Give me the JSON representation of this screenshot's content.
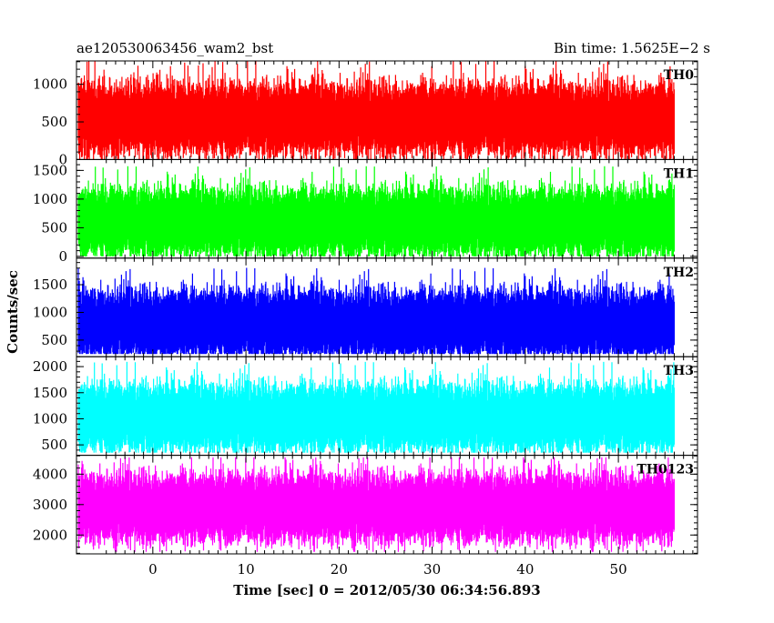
{
  "header": {
    "left_title": "ae120530063456_wam2_bst",
    "right_title": "Bin time: 1.5625E−2 s"
  },
  "axes": {
    "xlabel": "Time [sec] 0 = 2012/05/30 06:34:56.893",
    "ylabel": "Counts/sec"
  },
  "chart_data": {
    "type": "line",
    "title": "ae120530063456_wam2_bst",
    "subtitle": "Bin time: 1.5625E−2 s",
    "xlabel": "Time [sec] 0 = 2012/05/30 06:34:56.893",
    "ylabel": "Counts/sec",
    "xlim": [
      -8.2,
      58.5
    ],
    "x_range_data": [
      -8.0,
      56.0
    ],
    "x_ticks": [
      0,
      10,
      20,
      30,
      40,
      50
    ],
    "x_tick_labels": [
      "0",
      "10",
      "20",
      "30",
      "40",
      "50"
    ],
    "grid": false,
    "series": [
      {
        "name": "TH0",
        "color": "#ff0000",
        "ylim": [
          0,
          1310
        ],
        "y_ticks": [
          0,
          500,
          1000
        ],
        "y_tick_labels": [
          "0",
          "500",
          "1000"
        ],
        "mean": 560,
        "min": 0,
        "max": 1310
      },
      {
        "name": "TH1",
        "color": "#00ff00",
        "ylim": [
          -30,
          1690
        ],
        "y_ticks": [
          0,
          500,
          1000,
          1500
        ],
        "y_tick_labels": [
          "0",
          "500",
          "1000",
          "1500"
        ],
        "mean": 620,
        "min": 0,
        "max": 1650
      },
      {
        "name": "TH2",
        "color": "#0000ff",
        "ylim": [
          200,
          1980
        ],
        "y_ticks": [
          500,
          1000,
          1500
        ],
        "y_tick_labels": [
          "500",
          "1000",
          "1500"
        ],
        "mean": 820,
        "min": 250,
        "max": 1950
      },
      {
        "name": "TH3",
        "color": "#00ffff",
        "ylim": [
          300,
          2190
        ],
        "y_ticks": [
          500,
          1000,
          1500,
          2000
        ],
        "y_tick_labels": [
          "500",
          "1000",
          "1500",
          "2000"
        ],
        "mean": 1050,
        "min": 350,
        "max": 2150
      },
      {
        "name": "TH0123",
        "color": "#ff00ff",
        "ylim": [
          1380,
          4620
        ],
        "y_ticks": [
          2000,
          3000,
          4000
        ],
        "y_tick_labels": [
          "2000",
          "3000",
          "4000"
        ],
        "mean": 2950,
        "min": 1450,
        "max": 4550
      }
    ]
  }
}
